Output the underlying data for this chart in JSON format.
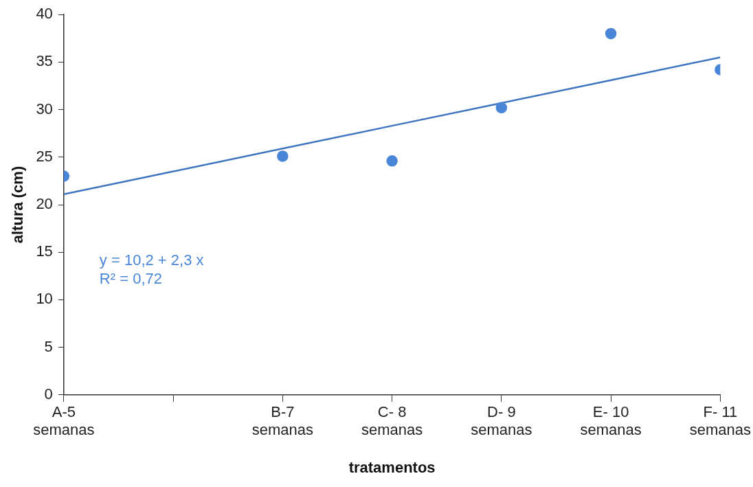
{
  "chart_data": {
    "type": "scatter",
    "xlabel": "tratamentos",
    "ylabel": "altura (cm)",
    "categories": [
      "A-5\nsemanas",
      null,
      "B-7\nsemanas",
      "C- 8\nsemanas",
      "D- 9\nsemanas",
      "E- 10\nsemanas",
      "F- 11\nsemanas"
    ],
    "series": [
      {
        "color": "#4a86d8",
        "values": [
          23,
          null,
          25.1,
          24.6,
          30.2,
          38,
          34.2
        ]
      },
      {
        "type": "line",
        "color": "#3f74c0",
        "values": [
          21.1,
          23.5,
          25.9,
          28.3,
          30.7,
          33.1,
          35.5
        ],
        "marker": "none"
      }
    ],
    "ylim": [
      0,
      40
    ],
    "yticks": [
      0,
      5,
      10,
      15,
      20,
      25,
      30,
      35,
      40
    ],
    "annotations": [
      "y = 10,2 + 2,3 x",
      "R² = 0,72"
    ],
    "grid": false,
    "legend": false,
    "marker": "circle"
  }
}
